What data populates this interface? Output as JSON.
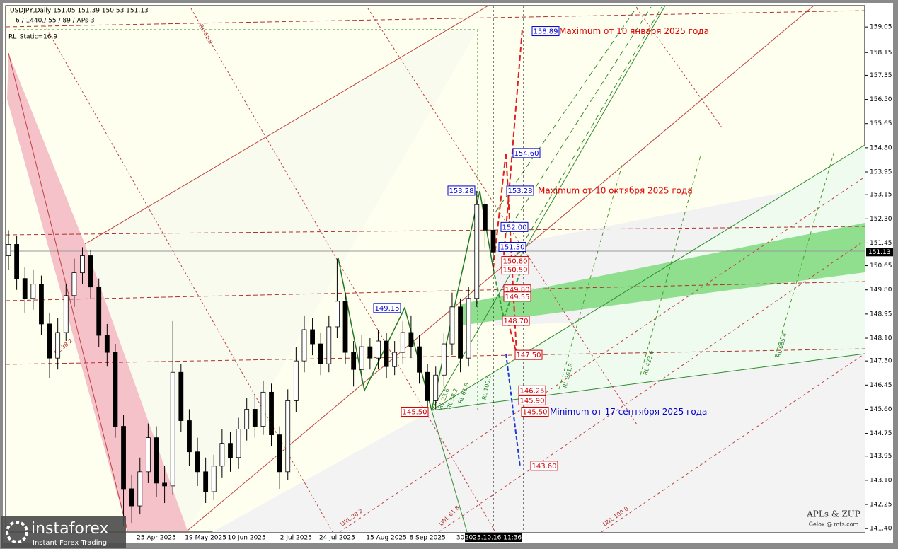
{
  "chart_data": {
    "type": "candlestick",
    "header": "USDJPY,Daily  151.05 151.39 150.53 151.13",
    "subheader": "6 / 1440 / 55 / 89 / APs-3",
    "indicator": "RL_Static=16.9",
    "categories": [
      null,
      null,
      null,
      null,
      null,
      null,
      null,
      null,
      null,
      null,
      null,
      null,
      null,
      null,
      null,
      null,
      null,
      null,
      "25 Apr 2025",
      null,
      null,
      null,
      null,
      null,
      "19 May 2025",
      null,
      null,
      null,
      null,
      "10 Jun 2025",
      null,
      null,
      null,
      null,
      null,
      "2 Jul 2025",
      null,
      null,
      null,
      null,
      "24 Jul 2025",
      null,
      null,
      null,
      null,
      null,
      "15 Aug 2025",
      null,
      null,
      null,
      null,
      "8 Sep 2025",
      null,
      null,
      null,
      "30",
      null,
      null,
      null,
      null
    ],
    "open": [
      151.0,
      151.4,
      150.2,
      149.5,
      150.0,
      148.6,
      147.4,
      148.3,
      149.6,
      150.4,
      151.0,
      149.9,
      148.2,
      147.6,
      145.0,
      142.8,
      142.2,
      143.4,
      144.6,
      143.0,
      142.9,
      146.9,
      145.2,
      144.1,
      143.4,
      142.7,
      143.6,
      144.4,
      143.9,
      144.9,
      145.6,
      145.0,
      146.2,
      144.7,
      143.4,
      145.9,
      147.3,
      148.4,
      147.9,
      147.2,
      148.5,
      149.4,
      147.6,
      147.0,
      147.8,
      147.4,
      148.0,
      147.1,
      147.6,
      148.3,
      147.8,
      146.9,
      145.9,
      146.8,
      147.9,
      149.2,
      147.4,
      149.5,
      152.8,
      151.9
    ],
    "high": [
      151.9,
      151.7,
      150.6,
      150.5,
      150.3,
      149.0,
      148.8,
      150.0,
      150.9,
      151.3,
      151.2,
      150.2,
      148.6,
      147.9,
      145.4,
      143.3,
      143.9,
      145.1,
      145.0,
      143.6,
      148.7,
      147.2,
      145.6,
      144.6,
      143.9,
      144.0,
      144.9,
      144.8,
      145.3,
      146.0,
      146.1,
      146.6,
      146.5,
      145.0,
      146.3,
      147.8,
      148.9,
      148.8,
      148.3,
      148.9,
      150.9,
      149.7,
      148.0,
      148.2,
      148.1,
      148.4,
      148.3,
      148.0,
      148.7,
      148.9,
      148.2,
      147.2,
      147.1,
      148.3,
      149.7,
      149.5,
      149.9,
      153.28,
      153.0,
      152.3
    ],
    "low": [
      150.5,
      149.8,
      149.0,
      149.1,
      148.2,
      146.7,
      147.0,
      148.0,
      149.2,
      150.0,
      149.5,
      147.8,
      147.1,
      144.6,
      141.5,
      141.6,
      141.9,
      143.0,
      142.5,
      142.3,
      142.6,
      144.8,
      143.6,
      142.9,
      142.3,
      142.4,
      143.2,
      143.4,
      143.5,
      144.5,
      144.6,
      144.7,
      144.3,
      142.8,
      143.1,
      145.5,
      146.9,
      147.5,
      146.8,
      146.9,
      148.1,
      147.2,
      146.4,
      146.6,
      147.0,
      147.0,
      146.7,
      146.8,
      147.2,
      147.4,
      146.5,
      145.5,
      145.6,
      146.4,
      147.5,
      146.9,
      147.1,
      149.2,
      151.3,
      150.8
    ],
    "close": [
      151.4,
      150.2,
      149.5,
      150.0,
      148.6,
      147.4,
      148.3,
      149.6,
      150.4,
      151.0,
      149.9,
      148.2,
      147.6,
      145.0,
      142.8,
      142.2,
      143.4,
      144.6,
      143.0,
      142.9,
      146.9,
      145.2,
      144.1,
      143.4,
      142.7,
      143.6,
      144.4,
      143.9,
      144.9,
      145.6,
      145.0,
      146.2,
      144.7,
      143.4,
      145.9,
      147.3,
      148.4,
      147.9,
      147.2,
      148.5,
      149.4,
      147.6,
      147.0,
      147.8,
      147.4,
      148.0,
      147.1,
      147.6,
      148.3,
      147.8,
      146.9,
      145.9,
      146.8,
      147.9,
      149.2,
      147.4,
      149.5,
      152.8,
      151.9,
      151.13
    ],
    "last_price": 151.13,
    "crosshair_label": "2025.10.16 11:36",
    "ylim": [
      141.28,
      159.8
    ],
    "yticks": [
      {
        "value": 141.4,
        "label": "141.40"
      },
      142.25,
      {
        "value": 143.1,
        "label": "143.10"
      },
      143.95,
      144.75,
      {
        "value": 145.6,
        "label": "145.60"
      },
      146.45,
      {
        "value": 147.3,
        "label": "147.30"
      },
      {
        "value": 148.1,
        "label": "148.10"
      },
      148.95,
      {
        "value": 149.8,
        "label": "149.80"
      },
      150.65,
      151.45,
      {
        "value": 152.3,
        "label": "152.30"
      },
      153.15,
      153.95,
      {
        "value": 154.8,
        "label": "154.80"
      },
      155.65,
      {
        "value": 156.5,
        "label": "156.50"
      },
      157.35,
      158.15,
      159.05
    ],
    "levels": [
      {
        "value": 158.89,
        "label": "158.89",
        "color": "#0000cc"
      },
      {
        "value": 154.6,
        "label": "154.60",
        "color": "#0000cc"
      },
      {
        "value": 153.28,
        "label": "153.28",
        "color": "#0000cc"
      },
      {
        "value": 153.28,
        "label": "153.28",
        "color": "#0000cc"
      },
      {
        "value": 152.0,
        "label": "152.00",
        "color": "#0000cc"
      },
      {
        "value": 151.3,
        "label": "151.30",
        "color": "#0000cc"
      },
      {
        "value": 150.8,
        "label": "150.80",
        "color": "#cc0000"
      },
      {
        "value": 150.5,
        "label": "150.50",
        "color": "#cc0000"
      },
      {
        "value": 149.8,
        "label": "149.80",
        "color": "#cc0000"
      },
      {
        "value": 149.55,
        "label": "149.55",
        "color": "#cc0000"
      },
      {
        "value": 149.15,
        "label": "149.15",
        "color": "#0000cc"
      },
      {
        "value": 148.7,
        "label": "148.70",
        "color": "#cc0000"
      },
      {
        "value": 147.5,
        "label": "147.50",
        "color": "#cc0000"
      },
      {
        "value": 146.25,
        "label": "146.25",
        "color": "#cc0000"
      },
      {
        "value": 145.9,
        "label": "145.90",
        "color": "#cc0000"
      },
      {
        "value": 145.5,
        "label": "145.50",
        "color": "#cc0000"
      },
      {
        "value": 145.5,
        "label": "145.50",
        "color": "#cc0000"
      },
      {
        "value": 143.6,
        "label": "143.60",
        "color": "#cc0000"
      }
    ],
    "annotations": [
      {
        "text": "Maximum от 10 января 2025 года",
        "color": "#dd0000"
      },
      {
        "text": "Maximum от 10 октября 2025 года",
        "color": "#dd0000"
      },
      {
        "text": "Minimum от 17 сентября 2025 года",
        "color": "#0000cc"
      }
    ],
    "line_labels": [
      "RL 61.8",
      "RL 100.0",
      "RL 261.8",
      "RL 423.6",
      "RL 685.4",
      "LWL 38.2",
      "LWL 61.8",
      "LWL 100.0",
      "RL 23.6",
      "RL 38.2",
      "RL 38.2",
      "RL 61.8"
    ],
    "watermark": [
      "APLs & ZUP",
      "Gelox @ mts.com"
    ],
    "logo": [
      "instaforex",
      "Instant Forex Trading"
    ]
  }
}
